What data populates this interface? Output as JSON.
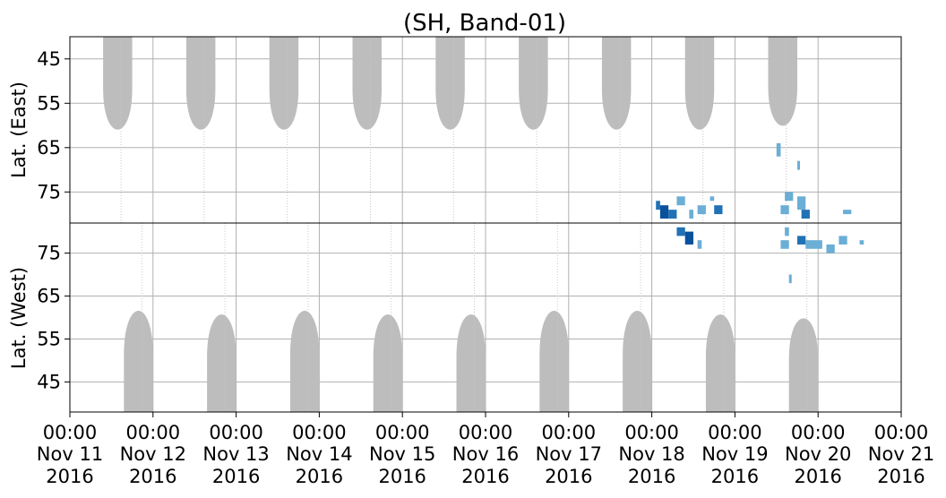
{
  "chart_data": {
    "type": "heatmap",
    "title": "(SH, Band-01)",
    "grid": true,
    "colors": {
      "coverage": "#bdbdbd",
      "detection_light": "#6baed6",
      "detection_dark": "#2171b5",
      "grid": "#b0b0b0"
    },
    "x_ticks": [
      {
        "time": "00:00",
        "date": "Nov 11",
        "year": "2016"
      },
      {
        "time": "00:00",
        "date": "Nov 12",
        "year": "2016"
      },
      {
        "time": "00:00",
        "date": "Nov 13",
        "year": "2016"
      },
      {
        "time": "00:00",
        "date": "Nov 14",
        "year": "2016"
      },
      {
        "time": "00:00",
        "date": "Nov 15",
        "year": "2016"
      },
      {
        "time": "00:00",
        "date": "Nov 16",
        "year": "2016"
      },
      {
        "time": "00:00",
        "date": "Nov 17",
        "year": "2016"
      },
      {
        "time": "00:00",
        "date": "Nov 18",
        "year": "2016"
      },
      {
        "time": "00:00",
        "date": "Nov 19",
        "year": "2016"
      },
      {
        "time": "00:00",
        "date": "Nov 20",
        "year": "2016"
      },
      {
        "time": "00:00",
        "date": "Nov 21",
        "year": "2016"
      }
    ],
    "xlim": [
      "2016-11-11 00:00",
      "2016-11-21 00:00"
    ],
    "panels": [
      {
        "ylabel": "Lat. (East)",
        "ylim": [
          40,
          82
        ],
        "inverted": true,
        "yticks": [
          "45",
          "55",
          "65",
          "75"
        ],
        "coverage_bands": [
          {
            "start": 10.4,
            "end": 10.75,
            "min_lat": 65
          },
          {
            "start": 11.4,
            "end": 11.75,
            "min_lat": 64
          },
          {
            "start": 12.4,
            "end": 12.75,
            "min_lat": 64
          },
          {
            "start": 13.4,
            "end": 13.75,
            "min_lat": 64
          },
          {
            "start": 14.4,
            "end": 14.75,
            "min_lat": 64
          },
          {
            "start": 15.4,
            "end": 15.75,
            "min_lat": 64
          },
          {
            "start": 16.4,
            "end": 16.75,
            "min_lat": 64
          },
          {
            "start": 17.4,
            "end": 17.75,
            "min_lat": 64
          },
          {
            "start": 18.4,
            "end": 18.75,
            "min_lat": 64
          },
          {
            "start": 19.4,
            "end": 19.75,
            "min_lat": 63
          }
        ],
        "detections": [
          {
            "t": 18.05,
            "lat": 77,
            "w": 0.05,
            "h": 2,
            "d": 1
          },
          {
            "t": 18.1,
            "lat": 78,
            "w": 0.1,
            "h": 3,
            "d": 2
          },
          {
            "t": 18.2,
            "lat": 79,
            "w": 0.1,
            "h": 2,
            "d": 1
          },
          {
            "t": 18.3,
            "lat": 76,
            "w": 0.1,
            "h": 2,
            "d": 0
          },
          {
            "t": 18.45,
            "lat": 79,
            "w": 0.05,
            "h": 2,
            "d": 0
          },
          {
            "t": 18.55,
            "lat": 78,
            "w": 0.1,
            "h": 2,
            "d": 0
          },
          {
            "t": 18.7,
            "lat": 76,
            "w": 0.05,
            "h": 1,
            "d": 0
          },
          {
            "t": 18.75,
            "lat": 78,
            "w": 0.1,
            "h": 2,
            "d": 1
          },
          {
            "t": 19.5,
            "lat": 64,
            "w": 0.05,
            "h": 3,
            "d": 0
          },
          {
            "t": 19.75,
            "lat": 68,
            "w": 0.03,
            "h": 2,
            "d": 0
          },
          {
            "t": 19.55,
            "lat": 78,
            "w": 0.1,
            "h": 2,
            "d": 0
          },
          {
            "t": 19.6,
            "lat": 75,
            "w": 0.1,
            "h": 2,
            "d": 0
          },
          {
            "t": 19.75,
            "lat": 76,
            "w": 0.1,
            "h": 3,
            "d": 0
          },
          {
            "t": 19.8,
            "lat": 79,
            "w": 0.1,
            "h": 2,
            "d": 1
          },
          {
            "t": 20.3,
            "lat": 79,
            "w": 0.1,
            "h": 1,
            "d": 0
          },
          {
            "t": 21.65,
            "lat": 75,
            "w": 0.05,
            "h": 2,
            "d": 0
          },
          {
            "t": 21.7,
            "lat": 78,
            "w": 0.05,
            "h": 2,
            "d": 0
          }
        ]
      },
      {
        "ylabel": "Lat. (West)",
        "ylim": [
          38,
          82
        ],
        "inverted": false,
        "yticks": [
          "75",
          "65",
          "55",
          "45"
        ],
        "coverage_bands": [
          {
            "start": 10.65,
            "end": 11.0,
            "min_lat": 66
          },
          {
            "start": 11.65,
            "end": 12.0,
            "min_lat": 65
          },
          {
            "start": 12.65,
            "end": 13.0,
            "min_lat": 64
          },
          {
            "start": 13.65,
            "end": 14.0,
            "min_lat": 65
          },
          {
            "start": 14.65,
            "end": 15.0,
            "min_lat": 64
          },
          {
            "start": 15.65,
            "end": 16.0,
            "min_lat": 64
          },
          {
            "start": 16.65,
            "end": 17.0,
            "min_lat": 65
          },
          {
            "start": 17.65,
            "end": 18.0,
            "min_lat": 65
          },
          {
            "start": 18.65,
            "end": 19.0,
            "min_lat": 64
          },
          {
            "start": 19.65,
            "end": 20.0,
            "min_lat": 63
          }
        ],
        "detections": [
          {
            "t": 18.3,
            "lat": 79,
            "w": 0.1,
            "h": 2,
            "d": 1
          },
          {
            "t": 18.4,
            "lat": 77,
            "w": 0.1,
            "h": 3,
            "d": 2
          },
          {
            "t": 18.55,
            "lat": 76,
            "w": 0.05,
            "h": 2,
            "d": 0
          },
          {
            "t": 19.55,
            "lat": 76,
            "w": 0.1,
            "h": 2,
            "d": 0
          },
          {
            "t": 19.6,
            "lat": 79,
            "w": 0.05,
            "h": 2,
            "d": 0
          },
          {
            "t": 19.75,
            "lat": 77,
            "w": 0.1,
            "h": 2,
            "d": 1
          },
          {
            "t": 19.85,
            "lat": 76,
            "w": 0.2,
            "h": 2,
            "d": 0
          },
          {
            "t": 20.1,
            "lat": 75,
            "w": 0.1,
            "h": 2,
            "d": 0
          },
          {
            "t": 20.25,
            "lat": 77,
            "w": 0.1,
            "h": 2,
            "d": 0
          },
          {
            "t": 20.5,
            "lat": 77,
            "w": 0.05,
            "h": 1,
            "d": 0
          },
          {
            "t": 19.65,
            "lat": 68,
            "w": 0.03,
            "h": 2,
            "d": 0
          },
          {
            "t": 21.55,
            "lat": 79,
            "w": 0.1,
            "h": 2,
            "d": 0
          },
          {
            "t": 21.7,
            "lat": 76,
            "w": 0.05,
            "h": 2,
            "d": 0
          }
        ]
      }
    ]
  }
}
